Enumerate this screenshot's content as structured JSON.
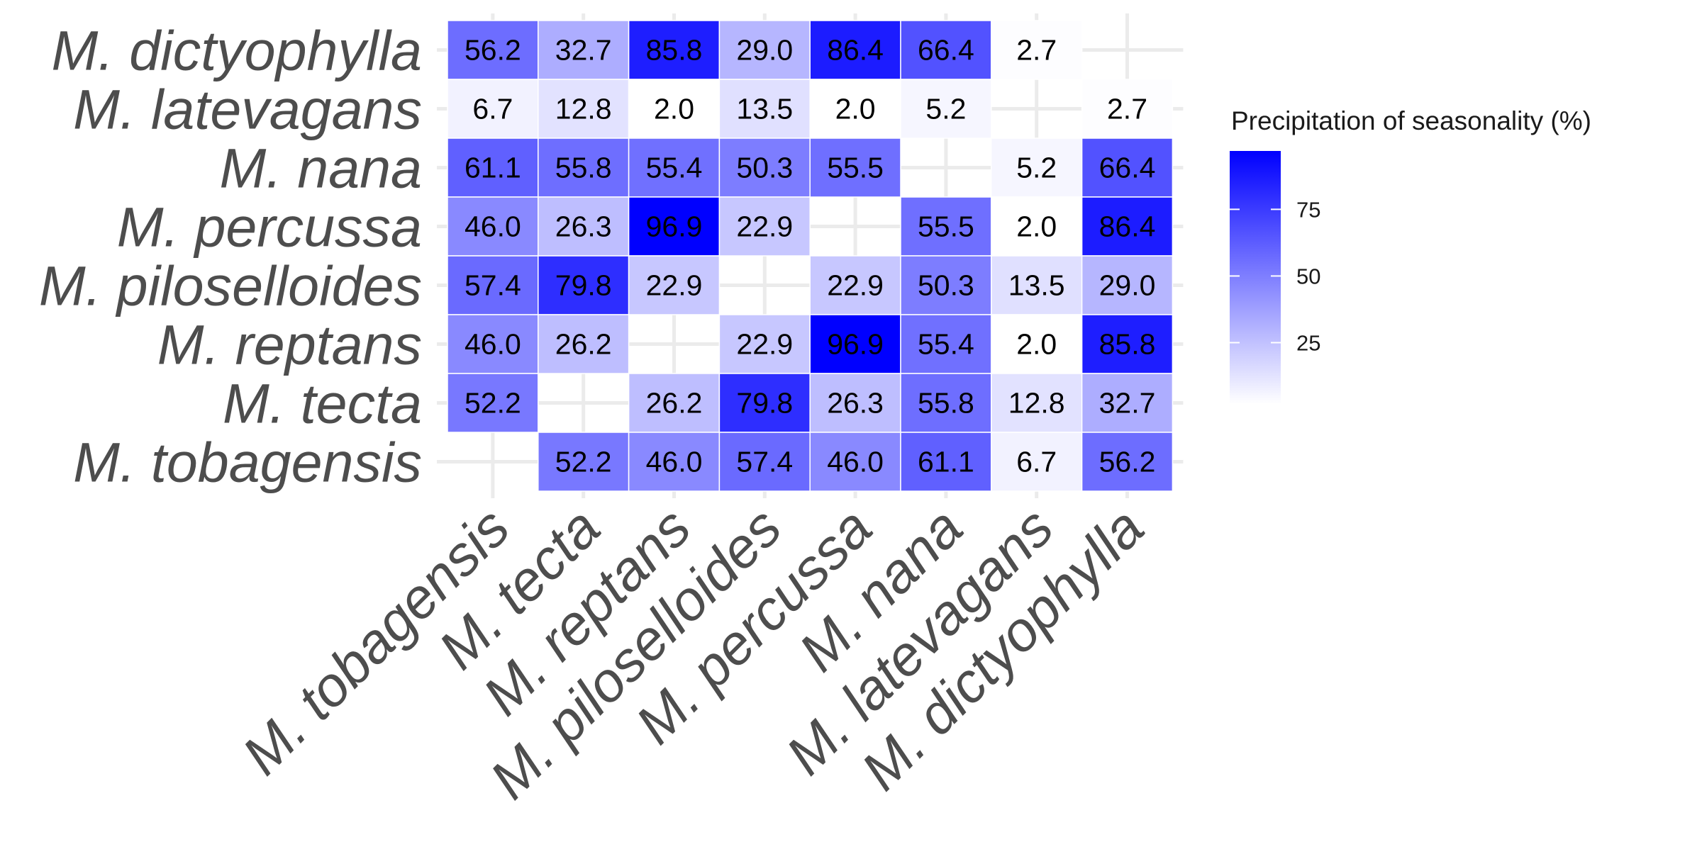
{
  "chart_data": {
    "type": "heatmap",
    "x_categories": [
      "M. tobagensis",
      "M. tecta",
      "M. reptans",
      "M. piloselloides",
      "M. percussa",
      "M. nana",
      "M. latevagans",
      "M. dictyophylla"
    ],
    "y_categories": [
      "M. dictyophylla",
      "M. latevagans",
      "M. nana",
      "M. percussa",
      "M. piloselloides",
      "M. reptans",
      "M. tecta",
      "M. tobagensis"
    ],
    "values": [
      [
        56.2,
        32.7,
        85.8,
        29.0,
        86.4,
        66.4,
        2.7,
        null
      ],
      [
        6.7,
        12.8,
        2.0,
        13.5,
        2.0,
        5.2,
        null,
        2.7
      ],
      [
        61.1,
        55.8,
        55.4,
        50.3,
        55.5,
        null,
        5.2,
        66.4
      ],
      [
        46.0,
        26.3,
        96.9,
        22.9,
        null,
        55.5,
        2.0,
        86.4
      ],
      [
        57.4,
        79.8,
        22.9,
        null,
        22.9,
        50.3,
        13.5,
        29.0
      ],
      [
        46.0,
        26.2,
        null,
        22.9,
        96.9,
        55.4,
        2.0,
        85.8
      ],
      [
        52.2,
        null,
        26.2,
        79.8,
        26.3,
        55.8,
        12.8,
        32.7
      ],
      [
        null,
        52.2,
        46.0,
        57.4,
        46.0,
        61.1,
        6.7,
        56.2
      ]
    ],
    "value_labels": [
      [
        "56.2",
        "32.7",
        "85.8",
        "29.0",
        "86.4",
        "66.4",
        "2.7",
        ""
      ],
      [
        "6.7",
        "12.8",
        "2.0",
        "13.5",
        "2.0",
        "5.2",
        "",
        "2.7"
      ],
      [
        "61.1",
        "55.8",
        "55.4",
        "50.3",
        "55.5",
        "",
        "5.2",
        "66.4"
      ],
      [
        "46.0",
        "26.3",
        "96.9",
        "22.9",
        "",
        "55.5",
        "2.0",
        "86.4"
      ],
      [
        "57.4",
        "79.8",
        "22.9",
        "",
        "22.9",
        "50.3",
        "13.5",
        "29.0"
      ],
      [
        "46.0",
        "26.2",
        "",
        "22.9",
        "96.9",
        "55.4",
        "2.0",
        "85.8"
      ],
      [
        "52.2",
        "",
        "26.2",
        "79.8",
        "26.3",
        "55.8",
        "12.8",
        "32.7"
      ],
      [
        "",
        "52.2",
        "46.0",
        "57.4",
        "46.0",
        "61.1",
        "6.7",
        "56.2"
      ]
    ],
    "color_scale": {
      "low": "#ffffff",
      "high": "#0000ff",
      "limits": [
        2.0,
        96.9
      ]
    },
    "legend": {
      "title": "Precipitation of seasonality (%)",
      "ticks": [
        25,
        50,
        75
      ],
      "tick_labels": [
        "25",
        "50",
        "75"
      ],
      "position": "right"
    },
    "grid": true
  }
}
